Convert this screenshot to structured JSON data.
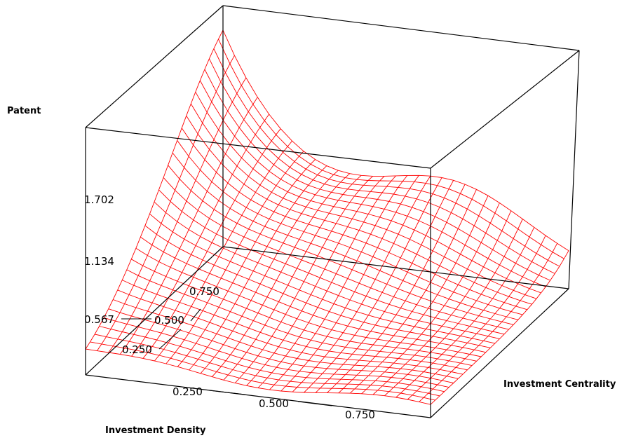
{
  "chart_data": {
    "type": "surface3d",
    "z_label": "Patent",
    "x_label": "Investment Density",
    "y_label": "Investment Centrality",
    "z_ticks": [
      "0.567",
      "1.134",
      "1.702"
    ],
    "x_ticks": [
      "0.250",
      "0.500",
      "0.750"
    ],
    "y_ticks": [
      "0.250",
      "0.500",
      "0.750"
    ],
    "x_range": [
      0,
      1
    ],
    "y_range": [
      0,
      1
    ],
    "grid_size": 30,
    "surface_color": "#ff0000",
    "box_color": "#000000"
  }
}
